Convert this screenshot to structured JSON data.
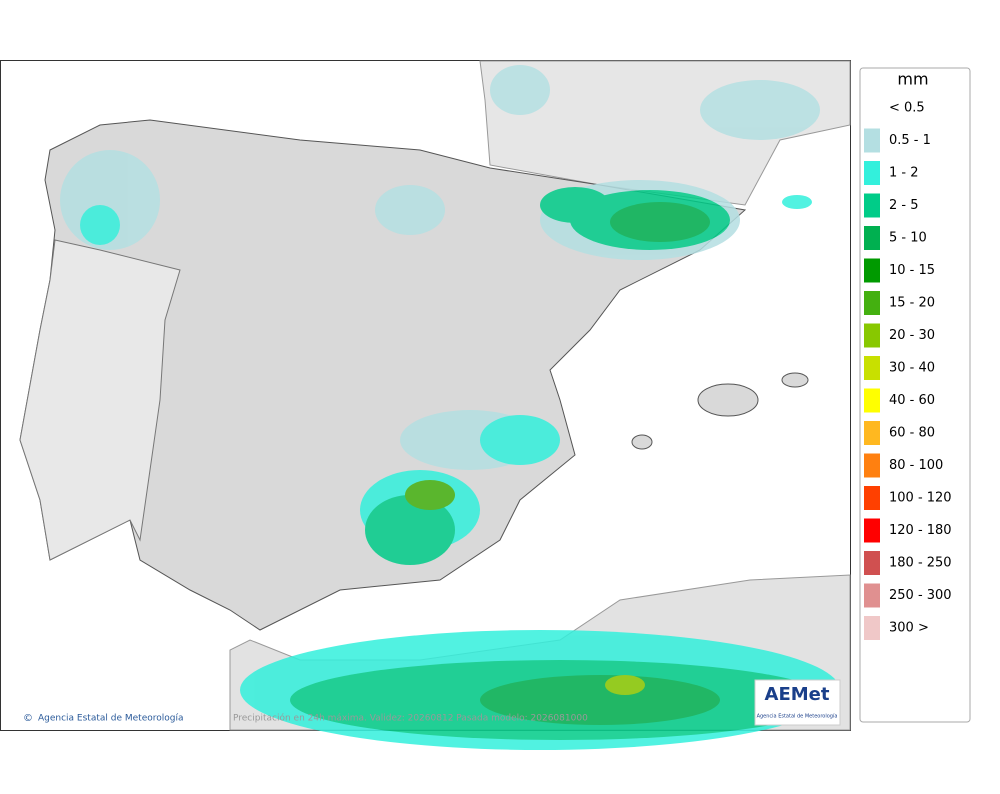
{
  "map": {
    "credit": "Agencia Estatal de Meteorología",
    "caption": "Precipitación en 24h máxima. Validez: 20260812 Pasada modelo: 2026081000",
    "logo": {
      "name": "AEMet",
      "subtitle": "Agencia Estatal de Meteorología"
    }
  },
  "legend": {
    "unit": "mm",
    "items": [
      {
        "label": "< 0.5"
      },
      {
        "label": "0.5 - 1",
        "color": "#b4dfe2"
      },
      {
        "label": "1 - 2",
        "color": "#33f0dc"
      },
      {
        "label": "2 - 5",
        "color": "#00cc88"
      },
      {
        "label": "5 - 10",
        "color": "#00b050"
      },
      {
        "label": "10 - 15",
        "color": "#009a00"
      },
      {
        "label": "15 - 20",
        "color": "#44b010"
      },
      {
        "label": "20 - 30",
        "color": "#88c800"
      },
      {
        "label": "30 - 40",
        "color": "#c8e000"
      },
      {
        "label": "40 - 60",
        "color": "#ffff00"
      },
      {
        "label": "60 - 80",
        "color": "#ffb820"
      },
      {
        "label": "80 - 100",
        "color": "#ff8010"
      },
      {
        "label": "100 - 120",
        "color": "#ff4000"
      },
      {
        "label": "120 - 180",
        "color": "#ff0000"
      },
      {
        "label": "180 - 250",
        "color": "#d05050"
      },
      {
        "label": "250 - 300",
        "color": "#e09090"
      },
      {
        "label": "300 >",
        "color": "#f0c8c8"
      }
    ]
  }
}
